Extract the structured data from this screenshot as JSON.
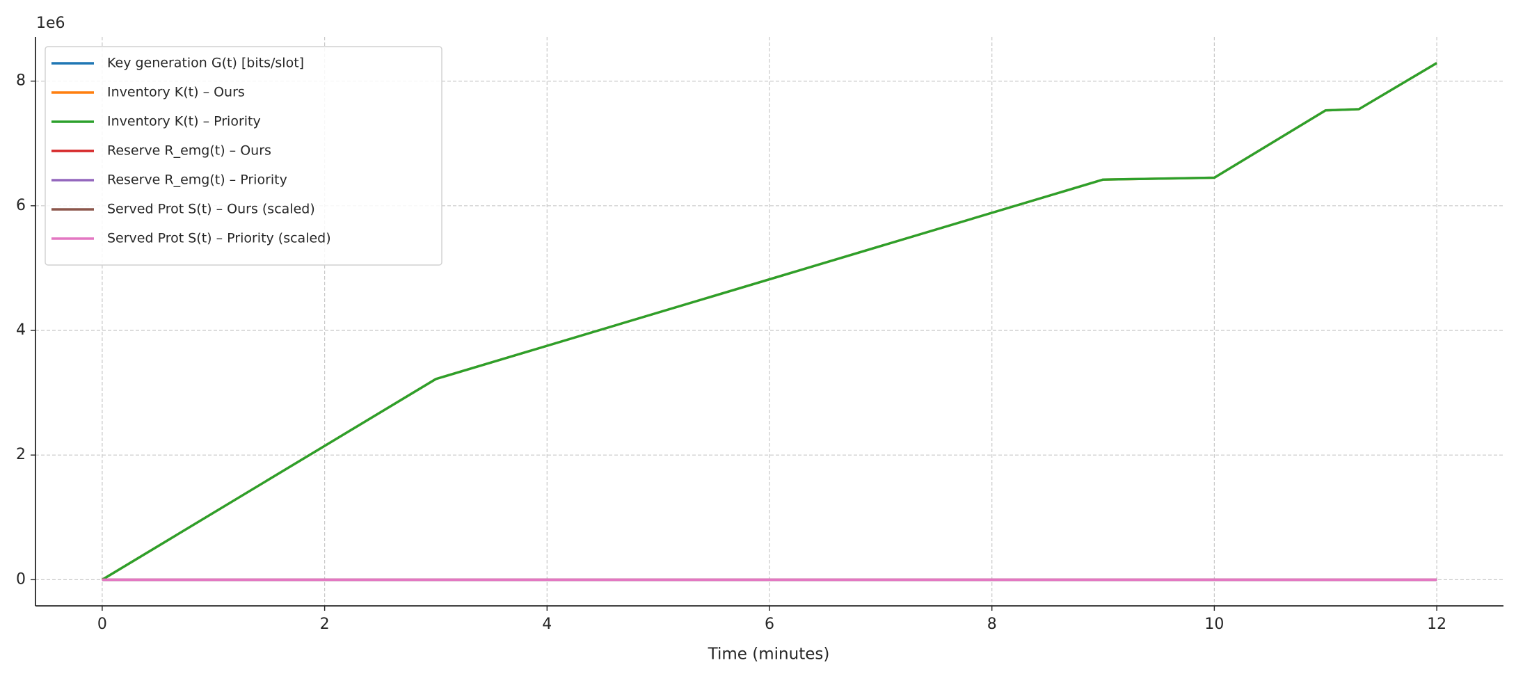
{
  "chart_data": {
    "type": "line",
    "xlabel": "Time (minutes)",
    "y_offset_label": "1e6",
    "x": [
      0,
      3,
      9,
      10,
      11,
      11.3,
      12
    ],
    "series": [
      {
        "name": "Key generation G(t) [bits/slot]",
        "color": "#1f77b4",
        "values": [
          0,
          0,
          0,
          0,
          0,
          0,
          0
        ]
      },
      {
        "name": "Inventory K(t) – Ours",
        "color": "#ff7f0e",
        "values": [
          0,
          3220000,
          6420000,
          6450000,
          7530000,
          7550000,
          8290000
        ]
      },
      {
        "name": "Inventory K(t) – Priority",
        "color": "#2ca02c",
        "values": [
          0,
          3220000,
          6420000,
          6450000,
          7530000,
          7550000,
          8290000
        ]
      },
      {
        "name": "Reserve R_emg(t) – Ours",
        "color": "#d62728",
        "values": [
          0,
          0,
          0,
          0,
          0,
          0,
          0
        ]
      },
      {
        "name": "Reserve R_emg(t) – Priority",
        "color": "#9467bd",
        "values": [
          0,
          0,
          0,
          0,
          0,
          0,
          0
        ]
      },
      {
        "name": "Served Prot S(t) – Ours (scaled)",
        "color": "#8c564b",
        "values": [
          0,
          0,
          0,
          0,
          0,
          0,
          0
        ]
      },
      {
        "name": "Served Prot S(t) – Priority (scaled)",
        "color": "#e377c2",
        "values": [
          0,
          0,
          0,
          0,
          0,
          0,
          0
        ]
      }
    ],
    "xlim": [
      -0.6,
      12.6
    ],
    "xticks": [
      0,
      2,
      4,
      6,
      8,
      10,
      12
    ],
    "ylim": [
      -420000,
      8710000
    ],
    "yticks": [
      {
        "value": 0,
        "label": "0"
      },
      {
        "value": 2000000,
        "label": "2"
      },
      {
        "value": 4000000,
        "label": "4"
      },
      {
        "value": 6000000,
        "label": "6"
      },
      {
        "value": 8000000,
        "label": "8"
      }
    ],
    "grid": true,
    "legend": "upper left"
  }
}
